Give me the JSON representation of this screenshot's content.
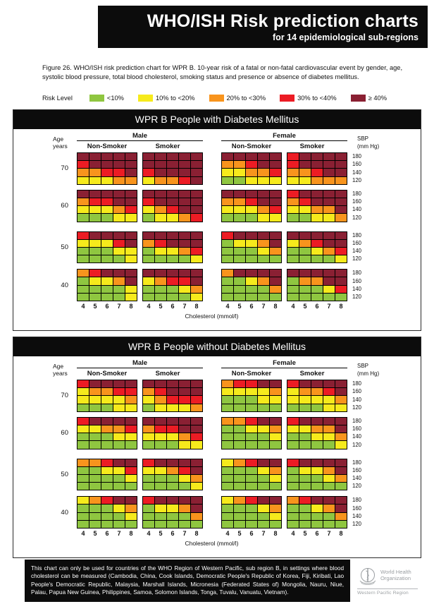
{
  "header": {
    "title": "WHO/ISH Risk prediction charts",
    "subtitle": "for 14 epidemiological sub-regions"
  },
  "caption": "Figure 26. WHO/ISH risk prediction chart for WPR B. 10-year risk of a fatal or non-fatal cardiovascular event by gender, age, systolic blood pressure, total blood cholesterol, smoking status and presence or absence of diabetes mellitus.",
  "legend": {
    "label": "Risk Level"
  },
  "axis": {
    "age_line1": "Age",
    "age_line2": "years",
    "sbp_line1": "SBP",
    "sbp_line2": "(mm Hg)",
    "cholesterol_label": "Cholesterol (mmol/l)"
  },
  "chart_data": {
    "type": "heatmap",
    "title": "WHO/ISH Risk prediction charts",
    "ages": [
      70,
      60,
      50,
      40
    ],
    "sbp": [
      180,
      160,
      140,
      120
    ],
    "cholesterol": [
      4,
      5,
      6,
      7,
      8
    ],
    "risk_colors": {
      "G": "#8FC640",
      "Y": "#F6EA1C",
      "O": "#F8941D",
      "R": "#EC1C24",
      "D": "#8A2033"
    },
    "risk_levels": [
      {
        "code": "G",
        "label": "<10%"
      },
      {
        "code": "Y",
        "label": "10% to <20%"
      },
      {
        "code": "O",
        "label": "20% to <30%"
      },
      {
        "code": "R",
        "label": "30% to <40%"
      },
      {
        "code": "D",
        "label": "≥ 40%"
      }
    ],
    "panels": [
      {
        "title": "WPR B People with Diabetes Mellitus",
        "groups": [
          {
            "gender": "Male",
            "smoking": "Non-Smoker",
            "grids": [
              [
                "DDDDD",
                "RDDDD",
                "OORRD",
                "YYYOO"
              ],
              [
                "DDDDD",
                "ORRDD",
                "YYYOR",
                "GGGYY"
              ],
              [
                "RDDDD",
                "YYYRD",
                "GGGYY",
                "GGGGY"
              ],
              [
                "ORDDD",
                "GYYOD",
                "GGGGY",
                "GGGGY"
              ]
            ]
          },
          {
            "gender": "Male",
            "smoking": "Smoker",
            "grids": [
              [
                "DDDDD",
                "DDDDD",
                "RDDDD",
                "YOORD"
              ],
              [
                "DDDDD",
                "RDDDD",
                "YORDD",
                "GYYOR"
              ],
              [
                "DDDDD",
                "ORDDD",
                "GYYOR",
                "GGGGY"
              ],
              [
                "DDDDD",
                "YORRD",
                "GGGYO",
                "GGGGY"
              ]
            ]
          },
          {
            "gender": "Female",
            "smoking": "Non-Smoker",
            "grids": [
              [
                "DDDDD",
                "OORDD",
                "YYOOR",
                "GGYYY"
              ],
              [
                "DDDDD",
                "OORDD",
                "YYYOR",
                "GGGYY"
              ],
              [
                "RDDDD",
                "GYYOD",
                "GGGYO",
                "GGGGG"
              ],
              [
                "ODDDD",
                "GGYOD",
                "GGGGO",
                "GGGGG"
              ]
            ]
          },
          {
            "gender": "Female",
            "smoking": "Smoker",
            "grids": [
              [
                "RDDDD",
                "RDDDD",
                "OORDD",
                "YYOOO"
              ],
              [
                "RDDDD",
                "ORDDD",
                "YYOOD",
                "GGYYO"
              ],
              [
                "DDDDD",
                "YORDD",
                "GGYOR",
                "GGGGY"
              ],
              [
                "DDDDD",
                "GOODD",
                "GGGYR",
                "GGGGG"
              ]
            ]
          }
        ]
      },
      {
        "title": "WPR B People without Diabetes Mellitus",
        "groups": [
          {
            "gender": "Male",
            "smoking": "Non-Smoker",
            "grids": [
              [
                "RDDDD",
                "YOORR",
                "YYYYO",
                "GGGYY"
              ],
              [
                "RDDDD",
                "YYOOR",
                "GGGYY",
                "GGGGG"
              ],
              [
                "OORDD",
                "GGYYR",
                "GGGGY",
                "GGGGG"
              ],
              [
                "YORDD",
                "GGGYO",
                "GGGGY",
                "GGGGG"
              ]
            ]
          },
          {
            "gender": "Male",
            "smoking": "Smoker",
            "grids": [
              [
                "DDDDD",
                "ORDDD",
                "YORRR",
                "GYYYO"
              ],
              [
                "DDDDD",
                "ORRDD",
                "YYYOR",
                "GGGYY"
              ],
              [
                "RDDDD",
                "YYORD",
                "GGGYO",
                "GGGGY"
              ],
              [
                "RDDDD",
                "GYYOD",
                "GGGGO",
                "GGGGG"
              ]
            ]
          },
          {
            "gender": "Female",
            "smoking": "Non-Smoker",
            "grids": [
              [
                "ORRDD",
                "YYYYO",
                "GGGYY",
                "GGGGG"
              ],
              [
                "OORDD",
                "GGYYO",
                "GGGGY",
                "GGGGG"
              ],
              [
                "YORDD",
                "GGGYO",
                "GGGGY",
                "GGGGG"
              ],
              [
                "YORDD",
                "GGGYO",
                "GGGGY",
                "GGGGG"
              ]
            ]
          },
          {
            "gender": "Female",
            "smoking": "Smoker",
            "grids": [
              [
                "RDDDD",
                "YOORD",
                "YYYYO",
                "GGGYY"
              ],
              [
                "RDDDD",
                "YYOOD",
                "GGYYO",
                "GGGGY"
              ],
              [
                "RDDDD",
                "GYYOD",
                "GGGYO",
                "GGGGG"
              ],
              [
                "ORDDD",
                "GGYOD",
                "GGGGO",
                "GGGGG"
              ]
            ]
          }
        ]
      }
    ]
  },
  "footer": {
    "text": "This chart can only be used for countries of the WHO Region of Western Pacific, sub region B, in settings where blood cholesterol can be measured (Cambodia, China, Cook Islands, Democratic People's Republic of Korea, Fiji, Kiribati, Lao People's Democratic Republic, Malaysia, Marshall Islands, Micronesia (Federated States of) Mongolia, Nauru, Niue, Palau, Papua New Guinea, Philippines, Samoa, Solomon Islands, Tonga, Tuvalu, Vanuatu, Vietnam).",
    "logo": {
      "org": "World Health Organization",
      "region": "Western Pacific Region"
    }
  }
}
